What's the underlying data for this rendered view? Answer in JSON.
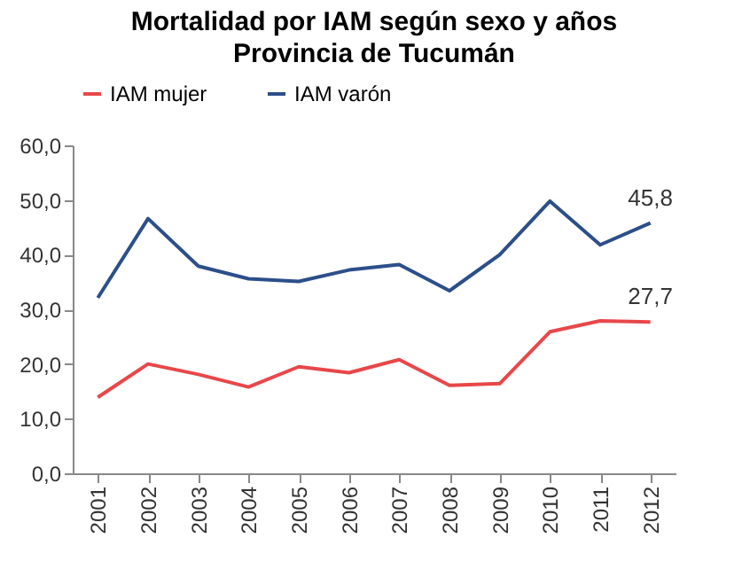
{
  "chart_data": {
    "type": "line",
    "title": "Mortalidad por IAM según sexo y años",
    "subtitle": "Provincia de Tucumán",
    "categories": [
      "2001",
      "2002",
      "2003",
      "2004",
      "2005",
      "2006",
      "2007",
      "2008",
      "2009",
      "2010",
      "2011",
      "2012"
    ],
    "series": [
      {
        "name": "IAM mujer",
        "color": "#e8474a",
        "values": [
          13.9,
          20.0,
          18.1,
          15.8,
          19.5,
          18.4,
          20.8,
          16.1,
          16.4,
          25.9,
          27.9,
          27.7
        ],
        "value_labels": [
          null,
          null,
          null,
          null,
          null,
          null,
          null,
          null,
          null,
          null,
          null,
          "27,7"
        ]
      },
      {
        "name": "IAM varón",
        "color": "#2c4f8a",
        "values": [
          32.1,
          46.6,
          37.9,
          35.6,
          35.1,
          37.2,
          38.2,
          33.4,
          40.0,
          49.8,
          41.8,
          45.8
        ],
        "value_labels": [
          null,
          null,
          null,
          null,
          null,
          null,
          null,
          null,
          null,
          null,
          null,
          "45,8"
        ]
      }
    ],
    "ylim": [
      0,
      60
    ],
    "yticks": [
      {
        "value": 0,
        "label": "0,0"
      },
      {
        "value": 10,
        "label": "10,0"
      },
      {
        "value": 20,
        "label": "20,0"
      },
      {
        "value": 30,
        "label": "30,0"
      },
      {
        "value": 40,
        "label": "40,0"
      },
      {
        "value": 50,
        "label": "50,0"
      },
      {
        "value": 60,
        "label": "60,0"
      }
    ],
    "grid": false,
    "legend": "top",
    "marker": "none",
    "line_style": "solid"
  }
}
